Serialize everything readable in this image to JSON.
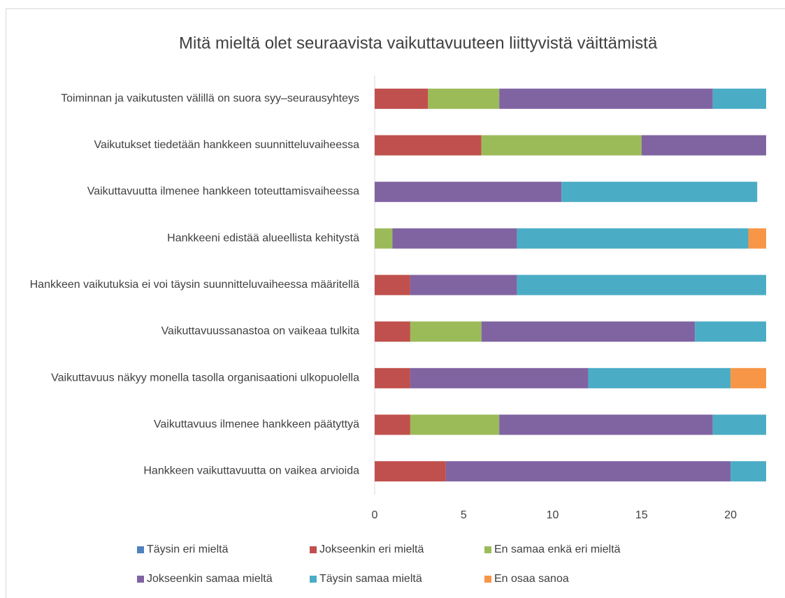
{
  "chart_data": {
    "type": "stacked_barh",
    "title": "Mitä mieltä olet seuraavista vaikuttavuuteen liittyvistä väittämistä",
    "categories": [
      "Toiminnan ja vaikutusten välillä on suora syy–seurausyhteys",
      "Vaikutukset tiedetään hankkeen suunnitteluvaiheessa",
      "Vaikuttavuutta ilmenee hankkeen toteuttamisvaiheessa",
      "Hankkeeni edistää alueellista kehitystä",
      "Hankkeen vaikutuksia ei voi täysin suunnitteluvaiheessa määritellä",
      "Vaikuttavuussanastoa on vaikeaa tulkita",
      "Vaikuttavuus näkyy monella tasolla organisaationi ulkopuolella",
      "Vaikuttavuus ilmenee hankkeen päätyttyä",
      "Hankkeen vaikuttavuutta on vaikea arvioida"
    ],
    "series": [
      {
        "name": "Täysin eri mieltä",
        "color": "#4f81bd",
        "values": [
          0,
          0,
          0,
          0,
          0,
          0,
          0,
          0,
          0
        ]
      },
      {
        "name": "Jokseenkin eri mieltä",
        "color": "#c0504d",
        "values": [
          3,
          6,
          0,
          0,
          2,
          2,
          2,
          2,
          4
        ]
      },
      {
        "name": "En samaa enkä eri mieltä",
        "color": "#9bbb59",
        "values": [
          4,
          9,
          0,
          1,
          0,
          4,
          0,
          5,
          0
        ]
      },
      {
        "name": "Jokseenkin samaa mieltä",
        "color": "#8064a2",
        "values": [
          12,
          7,
          10.5,
          7,
          6,
          12,
          10,
          12,
          16
        ]
      },
      {
        "name": "Täysin samaa mieltä",
        "color": "#4bacc6",
        "values": [
          3,
          0,
          11,
          13,
          14,
          4,
          8,
          3,
          2
        ]
      },
      {
        "name": "En osaa sanoa",
        "color": "#f79646",
        "values": [
          0,
          0,
          0,
          1,
          0,
          0,
          2,
          0,
          0
        ]
      }
    ],
    "xlim": [
      0,
      22
    ],
    "xticks": [
      0,
      5,
      10,
      15,
      20
    ]
  }
}
